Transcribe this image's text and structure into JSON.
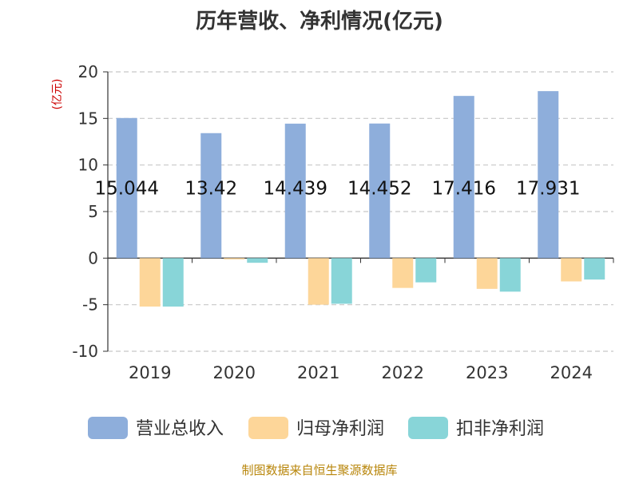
{
  "chart_data": {
    "type": "bar",
    "title": "历年营收、净利情况(亿元)",
    "ylabel": "(亿元)",
    "xlabel": "",
    "categories": [
      "2019",
      "2020",
      "2021",
      "2022",
      "2023",
      "2024"
    ],
    "ylim": [
      -10,
      20
    ],
    "yticks": [
      -10,
      -5,
      0,
      5,
      10,
      15,
      20
    ],
    "grid": "horizontal dashed",
    "legend_position": "bottom",
    "series": [
      {
        "name": "营业总收入",
        "color": "#8eaedb",
        "values": [
          15.044,
          13.42,
          14.439,
          14.452,
          17.416,
          17.931
        ],
        "labels": [
          "15.044",
          "13.42",
          "14.439",
          "14.452",
          "17.416",
          "17.931"
        ]
      },
      {
        "name": "归母净利润",
        "color": "#fdd699",
        "values": [
          -5.2,
          -0.1,
          -5.0,
          -3.2,
          -3.3,
          -2.5
        ]
      },
      {
        "name": "扣非净利润",
        "color": "#88d5d8",
        "values": [
          -5.2,
          -0.5,
          -4.9,
          -2.6,
          -3.6,
          -2.3
        ]
      }
    ]
  },
  "footer": {
    "source": "制图数据来自恒生聚源数据库"
  }
}
